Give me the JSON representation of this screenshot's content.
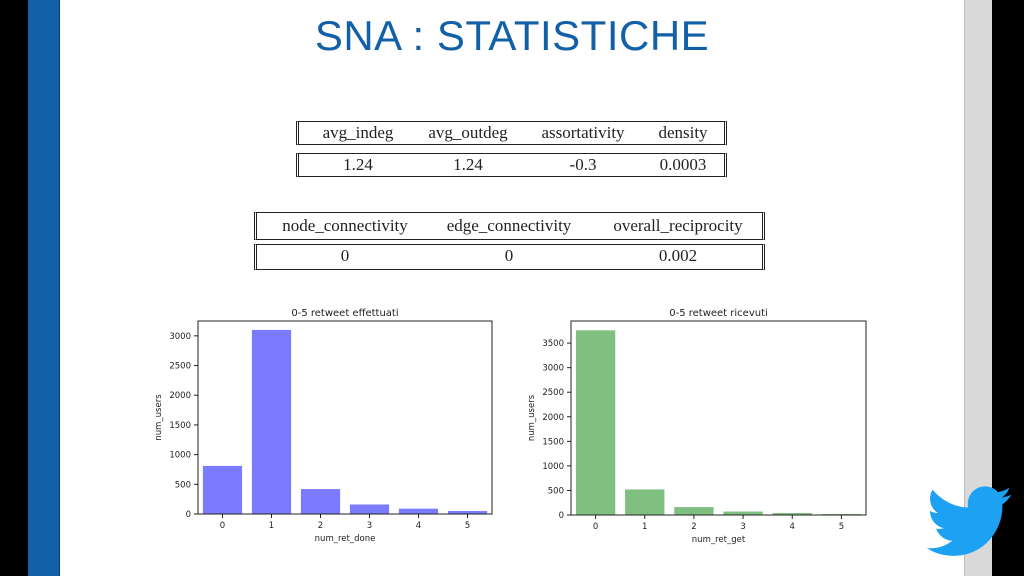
{
  "slide": {
    "title": "SNA : STATISTICHE"
  },
  "table1": {
    "headers": [
      "avg_indeg",
      "avg_outdeg",
      "assortativity",
      "density"
    ],
    "values": [
      "1.24",
      "1.24",
      "-0.3",
      "0.0003"
    ]
  },
  "table2": {
    "headers": [
      "node_connectivity",
      "edge_connectivity",
      "overall_reciprocity"
    ],
    "values": [
      "0",
      "0",
      "0.002"
    ]
  },
  "colors": {
    "brand_blue": "#1160a8",
    "twitter_blue": "#1da1f2",
    "bar_blue": "#7b7bff",
    "bar_green": "#7fbf7f"
  },
  "chart_data": [
    {
      "type": "bar",
      "title": "0-5 retweet effettuati",
      "xlabel": "num_ret_done",
      "ylabel": "num_users",
      "categories": [
        "0",
        "1",
        "2",
        "3",
        "4",
        "5"
      ],
      "values": [
        810,
        3100,
        420,
        160,
        90,
        50
      ],
      "ylim": [
        0,
        3250
      ],
      "yticks": [
        0,
        500,
        1000,
        1500,
        2000,
        2500,
        3000
      ],
      "color": "#7b7bff"
    },
    {
      "type": "bar",
      "title": "0-5 retweet ricevuti",
      "xlabel": "num_ret_get",
      "ylabel": "num_users",
      "categories": [
        "0",
        "1",
        "2",
        "3",
        "4",
        "5"
      ],
      "values": [
        3760,
        520,
        160,
        70,
        40,
        20
      ],
      "ylim": [
        0,
        3950
      ],
      "yticks": [
        0,
        500,
        1000,
        1500,
        2000,
        2500,
        3000,
        3500
      ],
      "color": "#7fbf7f"
    }
  ]
}
